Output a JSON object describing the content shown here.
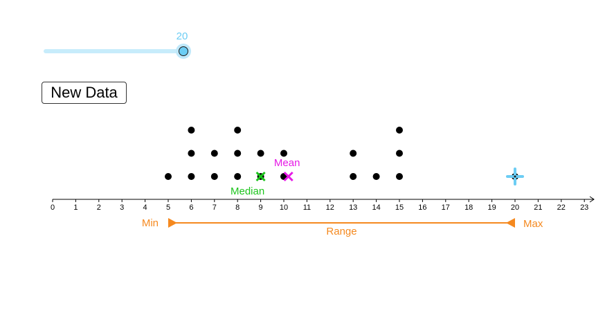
{
  "slider": {
    "value": "20",
    "level": 20,
    "color": "#6ccdf4"
  },
  "button": {
    "label": "New Data"
  },
  "chart_data": {
    "type": "scatter",
    "subtype": "dot-plot",
    "xlim": [
      0,
      23
    ],
    "ticks": [
      "0",
      "1",
      "2",
      "3",
      "4",
      "5",
      "6",
      "7",
      "8",
      "9",
      "10",
      "11",
      "12",
      "13",
      "14",
      "15",
      "16",
      "17",
      "18",
      "19",
      "20",
      "21",
      "22",
      "23"
    ],
    "points": [
      {
        "x": 5,
        "count": 1
      },
      {
        "x": 6,
        "count": 3
      },
      {
        "x": 7,
        "count": 2
      },
      {
        "x": 8,
        "count": 3
      },
      {
        "x": 9,
        "count": 2
      },
      {
        "x": 10,
        "count": 2
      },
      {
        "x": 13,
        "count": 2
      },
      {
        "x": 14,
        "count": 1
      },
      {
        "x": 15,
        "count": 3
      },
      {
        "x": 20,
        "count": 1
      }
    ],
    "outlier": {
      "x": 20,
      "color": "#6ccdf4"
    },
    "mean": {
      "x": 10.2,
      "label": "Mean",
      "color": "#e619e6"
    },
    "median": {
      "x": 9,
      "label": "Median",
      "color": "#1cc41c"
    },
    "range": {
      "min": 5,
      "max": 20,
      "min_label": "Min",
      "max_label": "Max",
      "range_label": "Range",
      "color": "#f5891f"
    }
  }
}
